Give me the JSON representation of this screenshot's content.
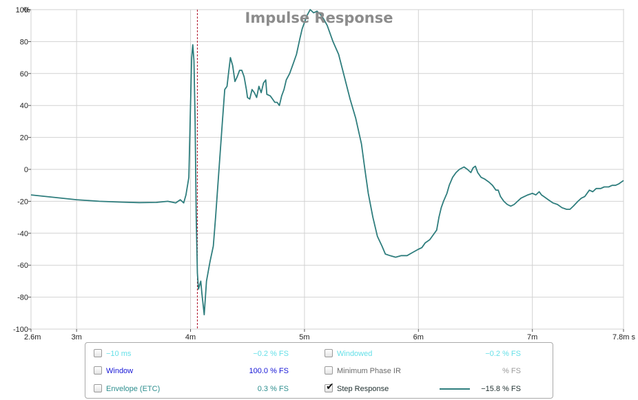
{
  "chart_data": {
    "type": "line",
    "title": "Impulse Response",
    "x_unit_label": "s",
    "xlim": [
      2.6,
      7.8
    ],
    "ylim": [
      -100,
      100
    ],
    "x_ticks": [
      {
        "value": 2.6,
        "label": "2.6m"
      },
      {
        "value": 3.0,
        "label": "3m"
      },
      {
        "value": 4.0,
        "label": "4m"
      },
      {
        "value": 5.0,
        "label": "5m"
      },
      {
        "value": 6.0,
        "label": "6m"
      },
      {
        "value": 7.0,
        "label": "7m"
      },
      {
        "value": 7.8,
        "label": "7.8m"
      }
    ],
    "y_ticks": [
      100,
      80,
      60,
      40,
      20,
      0,
      -20,
      -40,
      -60,
      -80,
      -100
    ],
    "y_unit_label": "%",
    "grid": true,
    "marker_line_x": 4.06,
    "series": [
      {
        "color": "#2e7d7d",
        "points": [
          [
            2.6,
            -16
          ],
          [
            2.8,
            -17.5
          ],
          [
            3.0,
            -19
          ],
          [
            3.2,
            -20
          ],
          [
            3.4,
            -20.5
          ],
          [
            3.55,
            -20.8
          ],
          [
            3.7,
            -20.7
          ],
          [
            3.8,
            -20
          ],
          [
            3.87,
            -21
          ],
          [
            3.91,
            -19
          ],
          [
            3.94,
            -21
          ],
          [
            3.96,
            -16
          ],
          [
            3.985,
            -5
          ],
          [
            4.0,
            40
          ],
          [
            4.01,
            70
          ],
          [
            4.02,
            78
          ],
          [
            4.03,
            68
          ],
          [
            4.04,
            30
          ],
          [
            4.05,
            -30
          ],
          [
            4.06,
            -65
          ],
          [
            4.07,
            -75
          ],
          [
            4.09,
            -70
          ],
          [
            4.1,
            -78
          ],
          [
            4.12,
            -91
          ],
          [
            4.14,
            -70
          ],
          [
            4.17,
            -58
          ],
          [
            4.2,
            -48
          ],
          [
            4.22,
            -30
          ],
          [
            4.24,
            -10
          ],
          [
            4.26,
            10
          ],
          [
            4.28,
            30
          ],
          [
            4.3,
            50
          ],
          [
            4.32,
            52
          ],
          [
            4.33,
            58
          ],
          [
            4.35,
            70
          ],
          [
            4.37,
            65
          ],
          [
            4.39,
            55
          ],
          [
            4.41,
            58
          ],
          [
            4.43,
            62
          ],
          [
            4.45,
            62
          ],
          [
            4.47,
            58
          ],
          [
            4.49,
            50
          ],
          [
            4.5,
            45
          ],
          [
            4.52,
            44
          ],
          [
            4.54,
            50
          ],
          [
            4.56,
            48
          ],
          [
            4.58,
            45
          ],
          [
            4.6,
            52
          ],
          [
            4.62,
            48
          ],
          [
            4.64,
            54
          ],
          [
            4.66,
            56
          ],
          [
            4.67,
            47
          ],
          [
            4.7,
            46
          ],
          [
            4.72,
            44
          ],
          [
            4.74,
            42
          ],
          [
            4.76,
            42
          ],
          [
            4.78,
            40
          ],
          [
            4.8,
            46
          ],
          [
            4.82,
            50
          ],
          [
            4.84,
            56
          ],
          [
            4.87,
            60
          ],
          [
            4.9,
            66
          ],
          [
            4.93,
            72
          ],
          [
            4.96,
            82
          ],
          [
            4.98,
            88
          ],
          [
            5.0,
            92
          ],
          [
            5.02,
            96
          ],
          [
            5.05,
            100
          ],
          [
            5.08,
            98
          ],
          [
            5.11,
            99
          ],
          [
            5.14,
            97
          ],
          [
            5.17,
            94
          ],
          [
            5.2,
            90
          ],
          [
            5.25,
            80
          ],
          [
            5.3,
            72
          ],
          [
            5.35,
            58
          ],
          [
            5.4,
            44
          ],
          [
            5.45,
            32
          ],
          [
            5.5,
            16
          ],
          [
            5.53,
            0
          ],
          [
            5.56,
            -15
          ],
          [
            5.6,
            -30
          ],
          [
            5.64,
            -42
          ],
          [
            5.68,
            -48
          ],
          [
            5.71,
            -53
          ],
          [
            5.75,
            -54
          ],
          [
            5.8,
            -55
          ],
          [
            5.85,
            -54
          ],
          [
            5.9,
            -54
          ],
          [
            5.95,
            -52
          ],
          [
            6.0,
            -50
          ],
          [
            6.03,
            -49
          ],
          [
            6.06,
            -46
          ],
          [
            6.1,
            -44
          ],
          [
            6.12,
            -42
          ],
          [
            6.16,
            -38
          ],
          [
            6.18,
            -30
          ],
          [
            6.2,
            -24
          ],
          [
            6.22,
            -20
          ],
          [
            6.25,
            -15
          ],
          [
            6.27,
            -10
          ],
          [
            6.3,
            -5
          ],
          [
            6.33,
            -2
          ],
          [
            6.36,
            0
          ],
          [
            6.4,
            1.5
          ],
          [
            6.43,
            0
          ],
          [
            6.46,
            -2
          ],
          [
            6.48,
            1
          ],
          [
            6.5,
            2
          ],
          [
            6.52,
            -2
          ],
          [
            6.55,
            -5
          ],
          [
            6.58,
            -6
          ],
          [
            6.62,
            -8
          ],
          [
            6.65,
            -10
          ],
          [
            6.68,
            -13
          ],
          [
            6.7,
            -13
          ],
          [
            6.72,
            -17
          ],
          [
            6.75,
            -20
          ],
          [
            6.78,
            -22
          ],
          [
            6.81,
            -23
          ],
          [
            6.84,
            -22
          ],
          [
            6.87,
            -20
          ],
          [
            6.9,
            -18
          ],
          [
            6.93,
            -17
          ],
          [
            6.96,
            -16
          ],
          [
            7.0,
            -15
          ],
          [
            7.03,
            -16
          ],
          [
            7.06,
            -14
          ],
          [
            7.08,
            -16
          ],
          [
            7.1,
            -17
          ],
          [
            7.14,
            -19
          ],
          [
            7.18,
            -21
          ],
          [
            7.22,
            -22
          ],
          [
            7.26,
            -24
          ],
          [
            7.3,
            -25
          ],
          [
            7.33,
            -25
          ],
          [
            7.36,
            -23
          ],
          [
            7.4,
            -20
          ],
          [
            7.43,
            -18
          ],
          [
            7.46,
            -17
          ],
          [
            7.5,
            -13
          ],
          [
            7.53,
            -14
          ],
          [
            7.56,
            -12
          ],
          [
            7.6,
            -12
          ],
          [
            7.63,
            -11
          ],
          [
            7.67,
            -11
          ],
          [
            7.7,
            -10
          ],
          [
            7.73,
            -10
          ],
          [
            7.76,
            -9
          ],
          [
            7.8,
            -7
          ]
        ]
      }
    ]
  },
  "legend": {
    "rows": [
      {
        "left": {
          "label": "−10 ms",
          "value": "−0.2 % FS",
          "checked": false
        },
        "right": {
          "label": "Windowed",
          "value": "−0.2 % FS",
          "checked": false
        }
      },
      {
        "left": {
          "label": "Window",
          "value": "100.0 % FS",
          "checked": false
        },
        "right": {
          "label": "Minimum Phase IR",
          "value": "% FS",
          "checked": false
        }
      },
      {
        "left": {
          "label": "Envelope (ETC)",
          "value": "0.3 % FS",
          "checked": false
        },
        "right": {
          "label": "Step Response",
          "value": "−15.8 % FS",
          "checked": true
        }
      }
    ]
  }
}
